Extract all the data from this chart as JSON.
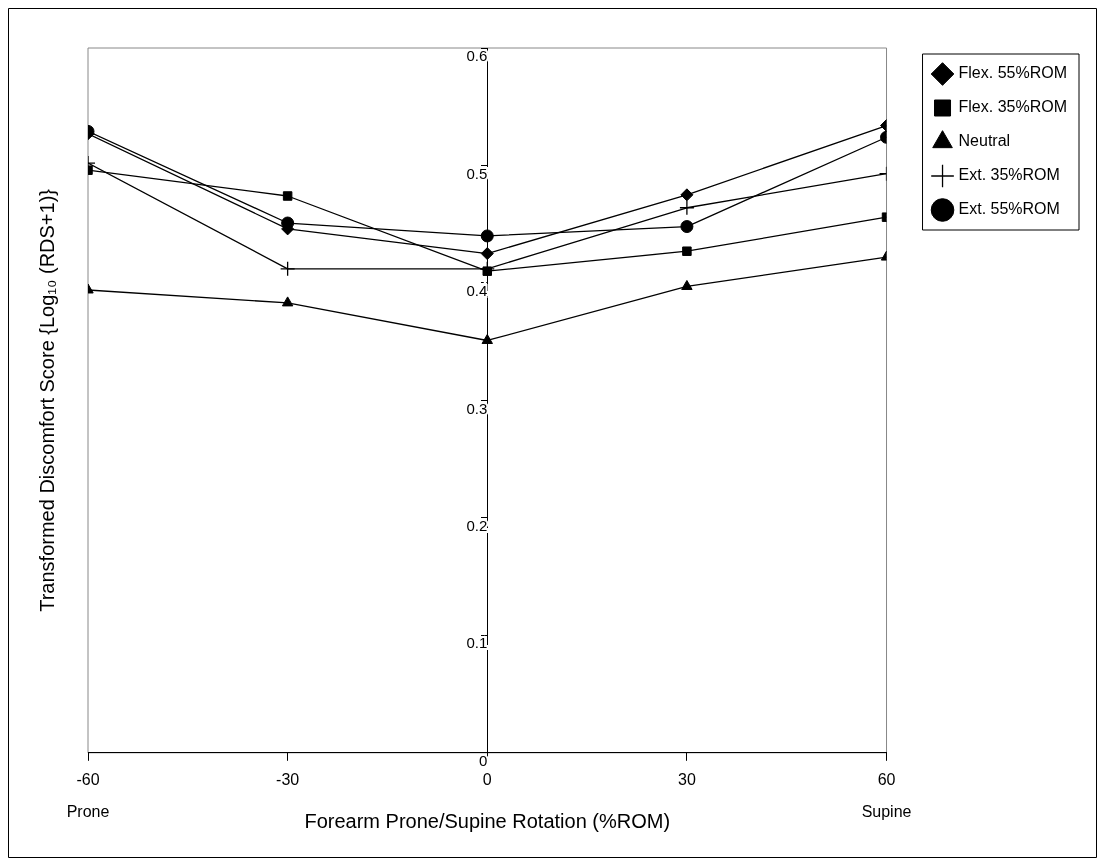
{
  "chart_data": {
    "type": "line",
    "xlabel": "Forearm Prone/Supine Rotation (%ROM)",
    "ylabel": "Transformed Discomfort Score {Log₁₀ (RDS+1)}",
    "x": [
      -60,
      -30,
      0,
      30,
      60
    ],
    "xlim": [
      -60,
      60
    ],
    "xticks": [
      -60,
      -30,
      0,
      30,
      60
    ],
    "ylim": [
      0,
      0.6
    ],
    "yticks": [
      0,
      0.1,
      0.2,
      0.3,
      0.4,
      0.5,
      0.6
    ],
    "grid": false,
    "legend": "top right",
    "line_style": "solid",
    "series": [
      {
        "name": "Flex. 55%ROM",
        "color": "#000000",
        "marker": "diamond",
        "values": [
          0.527,
          0.446,
          0.425,
          0.475,
          0.534
        ]
      },
      {
        "name": "Flex. 35%ROM",
        "color": "#000000",
        "marker": "square",
        "values": [
          0.496,
          0.474,
          0.41,
          0.427,
          0.456
        ]
      },
      {
        "name": "Neutral",
        "color": "#000000",
        "marker": "triangle",
        "values": [
          0.394,
          0.383,
          0.351,
          0.397,
          0.422
        ]
      },
      {
        "name": "Ext. 35%ROM",
        "color": "#000000",
        "marker": "cross",
        "values": [
          0.502,
          0.412,
          0.412,
          0.464,
          0.493
        ]
      },
      {
        "name": "Ext. 55%ROM",
        "color": "#000000",
        "marker": "circle",
        "values": [
          0.529,
          0.451,
          0.44,
          0.448,
          0.524
        ]
      }
    ],
    "annotations": [
      "Prone",
      "Supine"
    ]
  }
}
